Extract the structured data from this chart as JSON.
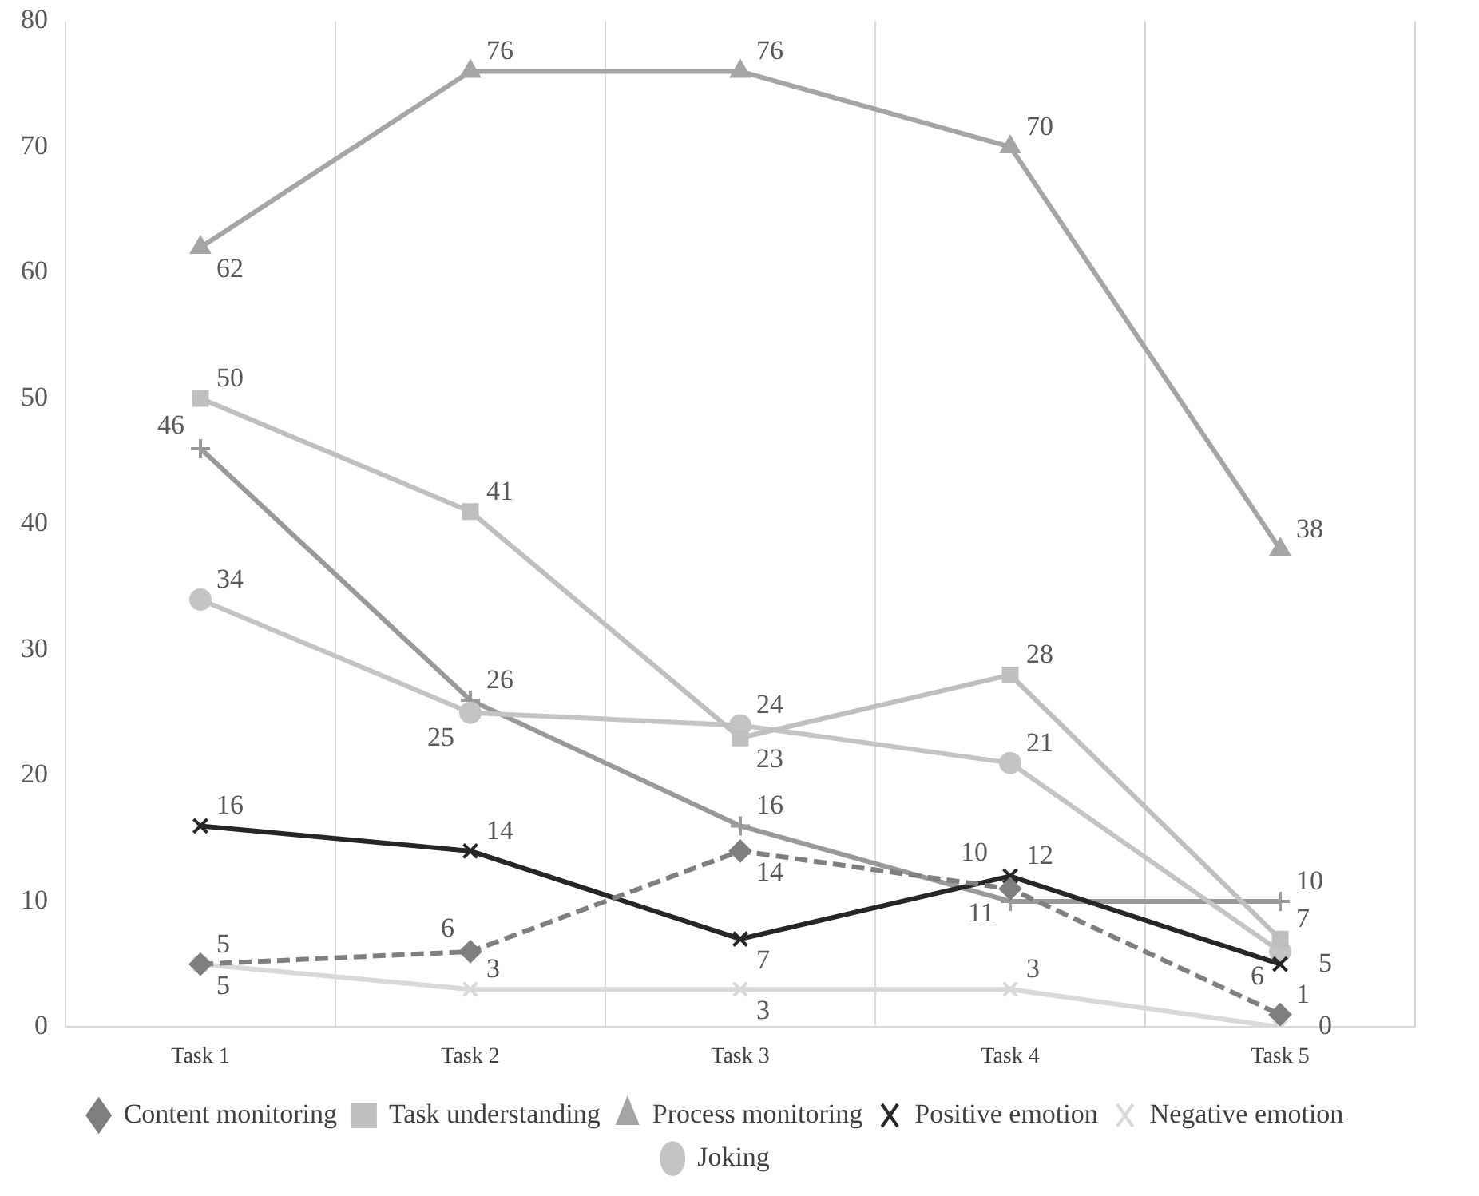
{
  "chart_data": {
    "type": "line",
    "categories": [
      "Task 1",
      "Task 2",
      "Task 3",
      "Task 4",
      "Task 5"
    ],
    "ylim": [
      0,
      80
    ],
    "yticks": [
      0,
      10,
      20,
      30,
      40,
      50,
      60,
      70,
      80
    ],
    "grid": "x",
    "legend": "bottom",
    "data_labels": true,
    "series": [
      {
        "name": "Content monitoring",
        "color": "#7f7f7f",
        "marker": "diamond",
        "line_style": "dashed",
        "values": [
          5,
          6,
          14,
          11,
          1
        ]
      },
      {
        "name": "Task understanding",
        "color": "#bfbfbf",
        "marker": "square",
        "values": [
          50,
          41,
          23,
          28,
          7
        ]
      },
      {
        "name": "Process monitoring",
        "color": "#a5a5a5",
        "marker": "triangle",
        "values": [
          62,
          76,
          76,
          70,
          38
        ]
      },
      {
        "name": "Positive emotion",
        "color": "#262626",
        "marker": "cross",
        "values": [
          16,
          14,
          7,
          12,
          5
        ]
      },
      {
        "name": "Negative emotion",
        "color": "#d9d9d9",
        "marker": "cross",
        "values": [
          5,
          3,
          3,
          3,
          0
        ]
      },
      {
        "name": "Joking",
        "color": "#c4c4c4",
        "marker": "circle",
        "values": [
          34,
          25,
          24,
          21,
          6
        ]
      },
      {
        "color": "#999999",
        "marker": "plus",
        "values": [
          46,
          26,
          16,
          10,
          10
        ]
      }
    ]
  }
}
